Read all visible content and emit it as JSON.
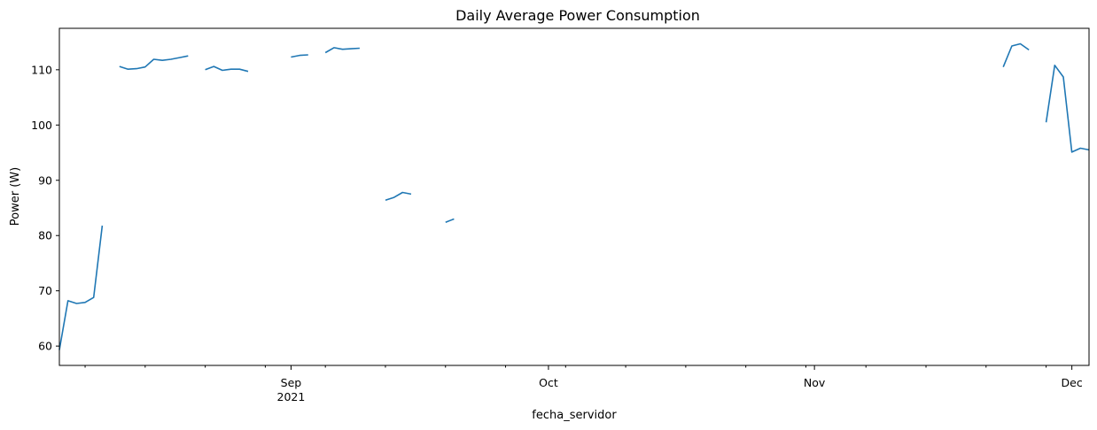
{
  "chart_data": {
    "type": "line",
    "title": "Daily Average Power Consumption",
    "xlabel": "fecha_servidor",
    "ylabel": "Power (W)",
    "xlim": [
      "2021-08-05",
      "2021-12-03"
    ],
    "ylim": [
      56.5,
      117.5
    ],
    "grid": false,
    "color": "#1f77b4",
    "y_ticks": [
      60,
      70,
      80,
      90,
      100,
      110
    ],
    "x_major_ticks": [
      {
        "date": "2021-09-01",
        "label": "Sep",
        "sublabel": "2021"
      },
      {
        "date": "2021-10-01",
        "label": "Oct",
        "sublabel": ""
      },
      {
        "date": "2021-11-01",
        "label": "Nov",
        "sublabel": ""
      },
      {
        "date": "2021-12-01",
        "label": "Dec",
        "sublabel": ""
      }
    ],
    "x_minor_ticks": [
      "2021-08-08",
      "2021-08-15",
      "2021-08-22",
      "2021-08-29",
      "2021-09-05",
      "2021-09-12",
      "2021-09-19",
      "2021-09-26",
      "2021-10-03",
      "2021-10-10",
      "2021-10-17",
      "2021-10-24",
      "2021-10-31",
      "2021-11-07",
      "2021-11-14",
      "2021-11-21",
      "2021-11-28"
    ],
    "series": [
      {
        "name": "",
        "points": [
          [
            "2021-08-05",
            59.3
          ],
          [
            "2021-08-06",
            68.2
          ],
          [
            "2021-08-07",
            67.7
          ],
          [
            "2021-08-08",
            67.9
          ],
          [
            "2021-08-09",
            68.8
          ],
          [
            "2021-08-10",
            81.8
          ],
          [
            "2021-08-11",
            null
          ],
          [
            "2021-08-12",
            110.6
          ],
          [
            "2021-08-13",
            110.1
          ],
          [
            "2021-08-14",
            110.2
          ],
          [
            "2021-08-15",
            110.5
          ],
          [
            "2021-08-16",
            111.9
          ],
          [
            "2021-08-17",
            111.7
          ],
          [
            "2021-08-18",
            111.9
          ],
          [
            "2021-08-19",
            112.2
          ],
          [
            "2021-08-20",
            112.5
          ],
          [
            "2021-08-21",
            null
          ],
          [
            "2021-08-22",
            110.0
          ],
          [
            "2021-08-23",
            110.6
          ],
          [
            "2021-08-24",
            109.9
          ],
          [
            "2021-08-25",
            110.1
          ],
          [
            "2021-08-26",
            110.1
          ],
          [
            "2021-08-27",
            109.7
          ],
          [
            "2021-08-28",
            null
          ],
          [
            "2021-08-29",
            null
          ],
          [
            "2021-08-30",
            null
          ],
          [
            "2021-08-31",
            null
          ],
          [
            "2021-09-01",
            112.3
          ],
          [
            "2021-09-02",
            112.6
          ],
          [
            "2021-09-03",
            112.7
          ],
          [
            "2021-09-04",
            null
          ],
          [
            "2021-09-05",
            113.1
          ],
          [
            "2021-09-06",
            114.0
          ],
          [
            "2021-09-07",
            113.7
          ],
          [
            "2021-09-08",
            113.8
          ],
          [
            "2021-09-09",
            113.9
          ],
          [
            "2021-09-10",
            null
          ],
          [
            "2021-09-11",
            null
          ],
          [
            "2021-09-12",
            86.4
          ],
          [
            "2021-09-13",
            86.9
          ],
          [
            "2021-09-14",
            87.8
          ],
          [
            "2021-09-15",
            87.5
          ],
          [
            "2021-09-16",
            null
          ],
          [
            "2021-09-17",
            null
          ],
          [
            "2021-09-18",
            null
          ],
          [
            "2021-09-19",
            82.4
          ],
          [
            "2021-09-20",
            83.0
          ],
          [
            "2021-09-21",
            null
          ],
          [
            "2021-11-23",
            110.5
          ],
          [
            "2021-11-24",
            114.3
          ],
          [
            "2021-11-25",
            114.7
          ],
          [
            "2021-11-26",
            113.6
          ],
          [
            "2021-11-27",
            null
          ],
          [
            "2021-11-28",
            100.5
          ],
          [
            "2021-11-29",
            110.8
          ],
          [
            "2021-11-30",
            108.7
          ],
          [
            "2021-12-01",
            95.1
          ],
          [
            "2021-12-02",
            95.8
          ],
          [
            "2021-12-03",
            95.5
          ]
        ]
      }
    ]
  }
}
